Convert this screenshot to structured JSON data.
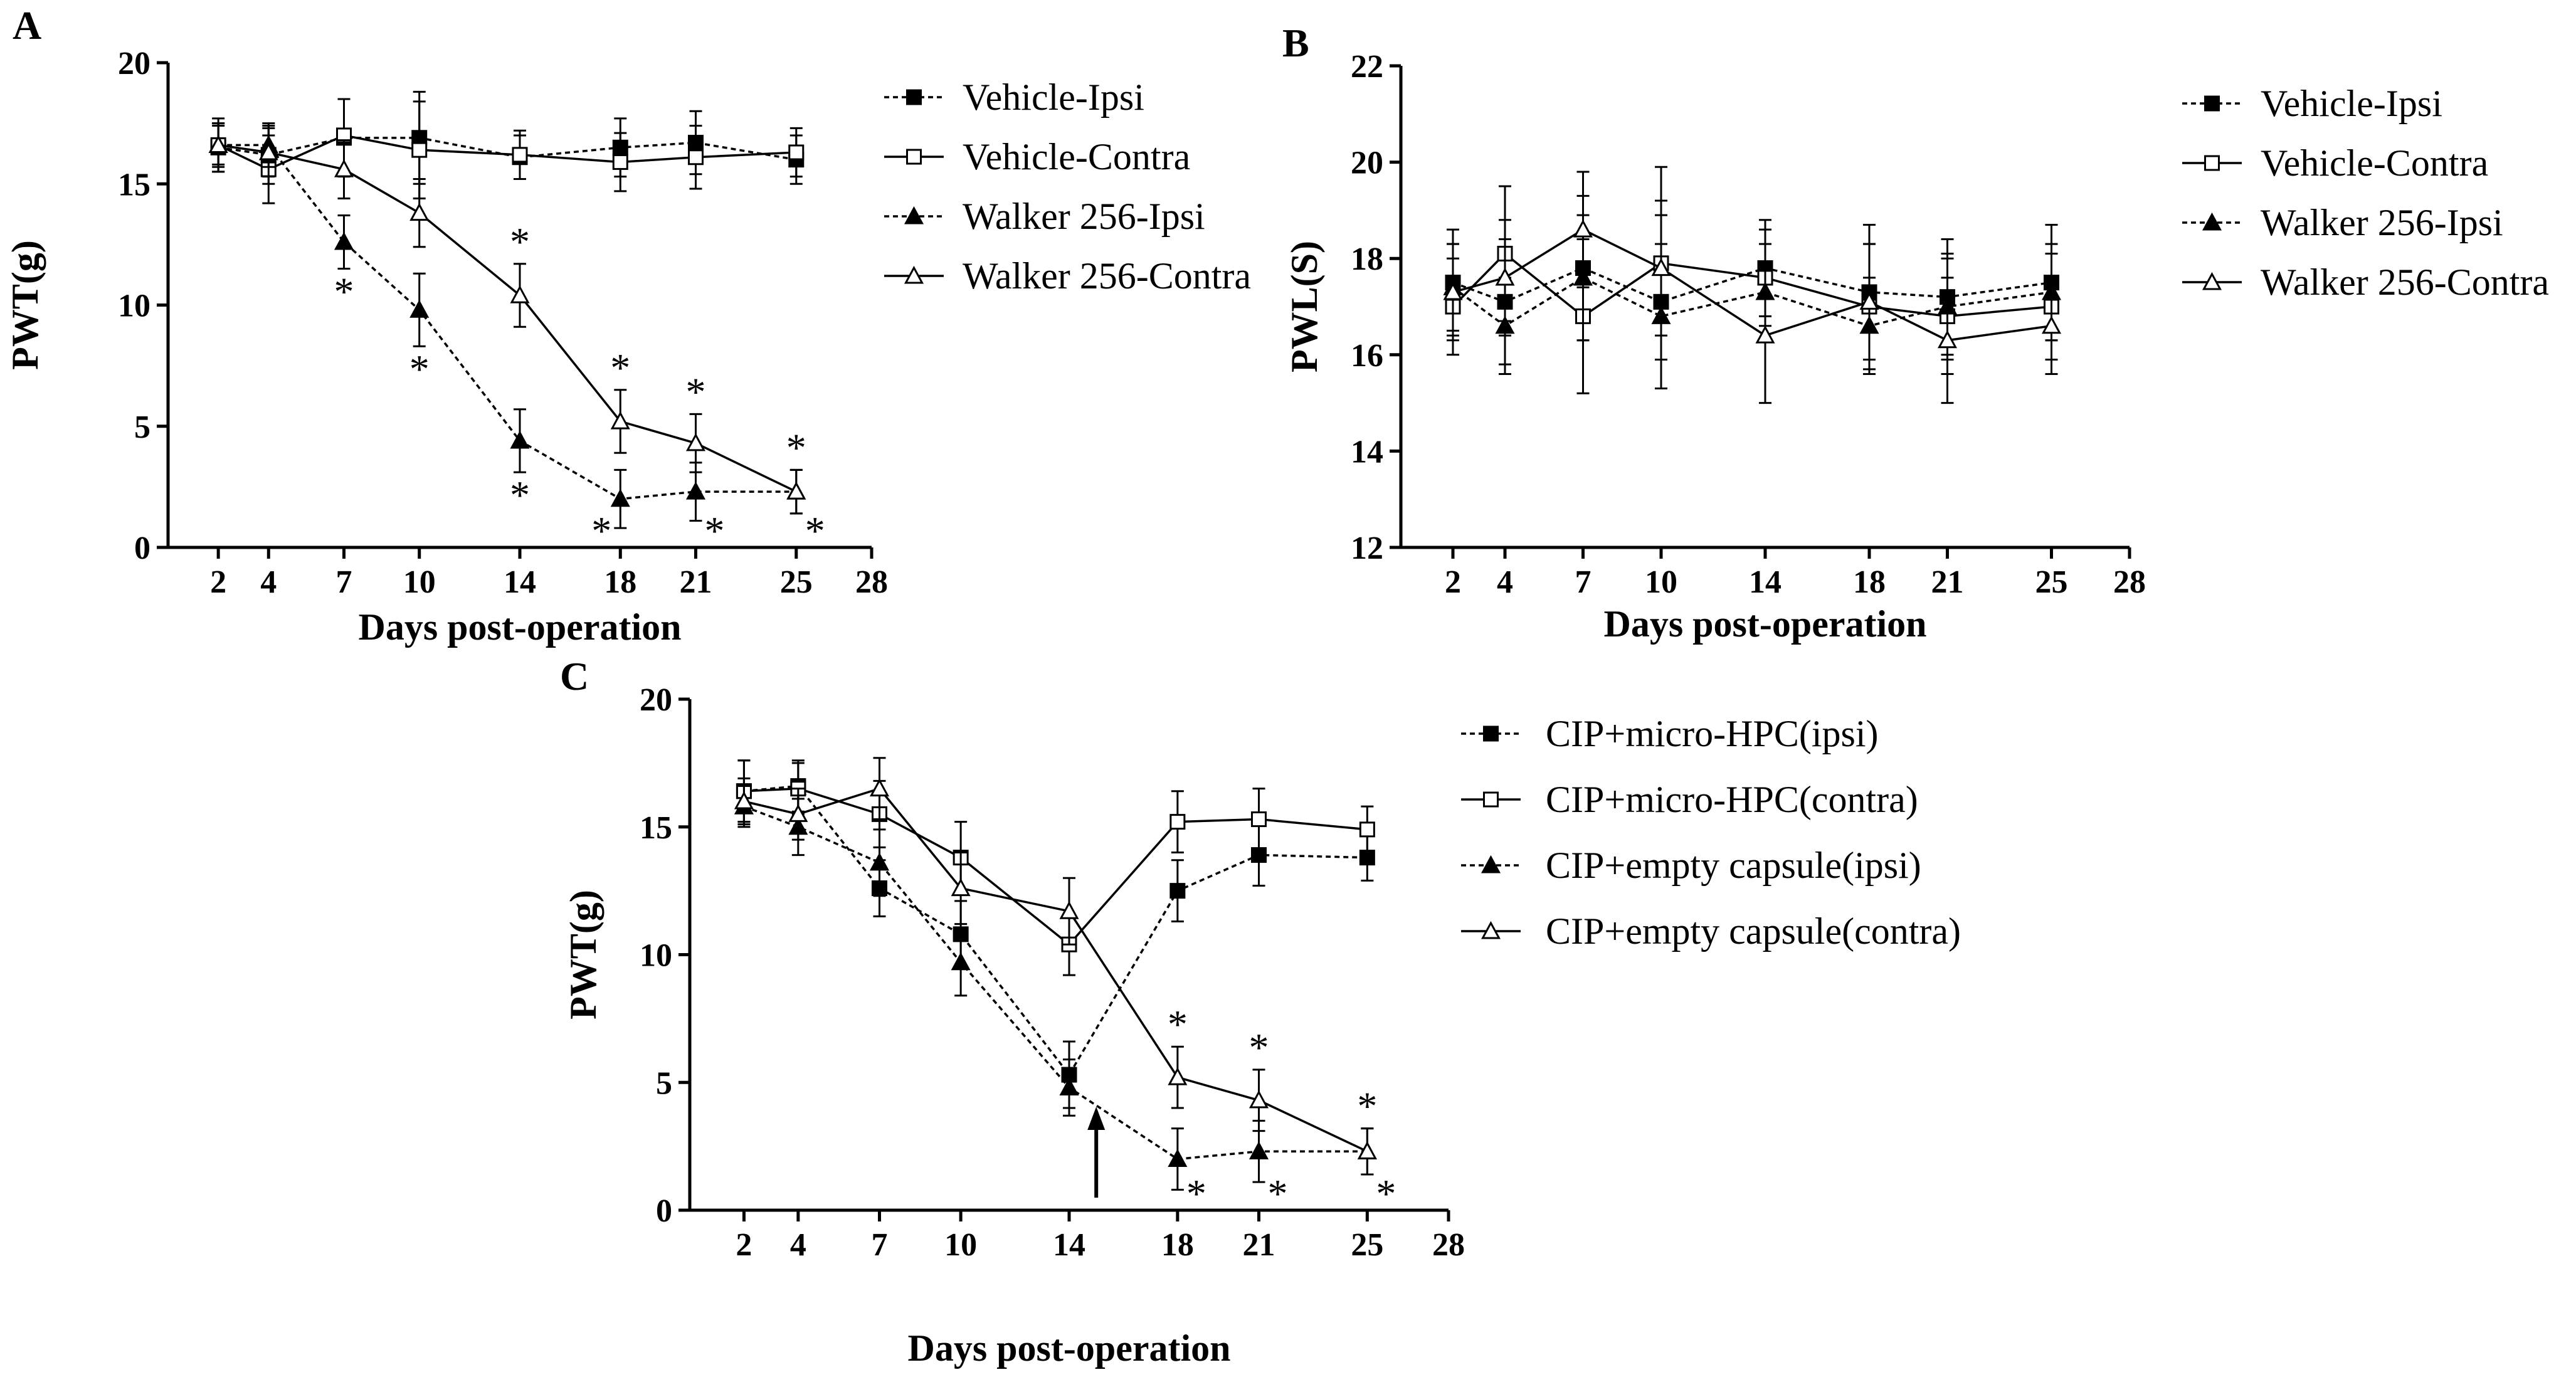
{
  "chart_data": [
    {
      "panel": "A",
      "type": "line",
      "ylabel": "PWT(g)",
      "xlabel": "Days post-operation",
      "ylim": [
        0,
        20
      ],
      "yticks": [
        "0",
        "5",
        "10",
        "15",
        "20"
      ],
      "xlim": [
        0,
        28
      ],
      "xticks": [
        "2",
        "4",
        "7",
        "10",
        "14",
        "18",
        "21",
        "25",
        "28"
      ],
      "x": [
        2,
        4,
        7,
        10,
        14,
        18,
        21,
        25
      ],
      "series": [
        {
          "name": "Vehicle-Ipsi",
          "line": "dotted",
          "marker": "square-filled",
          "values": [
            16.5,
            16.2,
            16.9,
            16.9,
            16.1,
            16.5,
            16.7,
            16.0
          ],
          "errors": [
            1.0,
            1.2,
            1.6,
            1.9,
            0.9,
            1.2,
            1.3,
            1.0
          ]
        },
        {
          "name": "Vehicle-Contra",
          "line": "solid",
          "marker": "square-open",
          "values": [
            16.6,
            15.6,
            17.0,
            16.4,
            16.2,
            15.9,
            16.1,
            16.3
          ],
          "errors": [
            1.1,
            1.4,
            1.5,
            2.0,
            1.0,
            1.2,
            1.3,
            1.0
          ]
        },
        {
          "name": "Walker 256-Ipsi",
          "line": "dotted",
          "marker": "triangle-filled",
          "values": [
            16.6,
            16.6,
            12.6,
            9.8,
            4.4,
            2.0,
            2.3,
            2.3
          ],
          "errors": [
            0.8,
            0.9,
            1.1,
            1.5,
            1.3,
            1.2,
            1.2,
            0.9
          ],
          "significant_below": [
            false,
            false,
            true,
            true,
            true,
            true,
            true,
            true
          ]
        },
        {
          "name": "Walker 256-Contra",
          "line": "solid",
          "marker": "triangle-open",
          "values": [
            16.6,
            16.3,
            15.6,
            13.8,
            10.4,
            5.2,
            4.3,
            2.3
          ],
          "errors": [
            0.9,
            1.0,
            1.2,
            1.4,
            1.3,
            1.3,
            1.2,
            0.9
          ],
          "significant_above": [
            false,
            false,
            false,
            false,
            true,
            true,
            true,
            true
          ]
        }
      ]
    },
    {
      "panel": "B",
      "type": "line",
      "ylabel": "PWL(S)",
      "xlabel": "Days post-operation",
      "ylim": [
        12,
        22
      ],
      "yticks": [
        "12",
        "14",
        "16",
        "18",
        "20",
        "22"
      ],
      "xlim": [
        0,
        28
      ],
      "xticks": [
        "2",
        "4",
        "7",
        "10",
        "14",
        "18",
        "21",
        "25",
        "28"
      ],
      "x": [
        2,
        4,
        7,
        10,
        14,
        18,
        21,
        25
      ],
      "series": [
        {
          "name": "Vehicle-Ipsi",
          "line": "dotted",
          "marker": "square-filled",
          "values": [
            17.5,
            17.1,
            17.8,
            17.1,
            17.8,
            17.3,
            17.2,
            17.5
          ],
          "errors": [
            1.1,
            1.3,
            1.5,
            1.8,
            1.0,
            1.4,
            1.2,
            1.2
          ]
        },
        {
          "name": "Vehicle-Contra",
          "line": "solid",
          "marker": "square-open",
          "values": [
            17.0,
            18.1,
            16.8,
            17.9,
            17.6,
            17.0,
            16.8,
            17.0
          ],
          "errors": [
            1.0,
            1.4,
            1.6,
            2.0,
            1.0,
            1.3,
            1.2,
            1.1
          ]
        },
        {
          "name": "Walker 256-Ipsi",
          "line": "dotted",
          "marker": "triangle-filled",
          "values": [
            17.4,
            16.6,
            17.6,
            16.8,
            17.3,
            16.6,
            17.0,
            17.3
          ],
          "errors": [
            0.9,
            1.0,
            1.3,
            1.5,
            1.0,
            1.0,
            1.1,
            1.0
          ]
        },
        {
          "name": "Walker 256-Contra",
          "line": "solid",
          "marker": "triangle-open",
          "values": [
            17.3,
            17.6,
            18.6,
            17.8,
            16.4,
            17.1,
            16.3,
            16.6
          ],
          "errors": [
            1.0,
            1.2,
            1.2,
            1.4,
            1.4,
            1.2,
            1.3,
            1.0
          ]
        }
      ]
    },
    {
      "panel": "C",
      "type": "line",
      "ylabel": "PWT(g)",
      "xlabel": "Days post-operation",
      "ylim": [
        0,
        20
      ],
      "yticks": [
        "0",
        "5",
        "10",
        "15",
        "20"
      ],
      "xlim": [
        0,
        28
      ],
      "xticks": [
        "2",
        "4",
        "7",
        "10",
        "14",
        "18",
        "21",
        "25",
        "28"
      ],
      "x": [
        2,
        4,
        7,
        10,
        14,
        18,
        21,
        25
      ],
      "arrow_at_day": 15,
      "series": [
        {
          "name": "CIP+micro-HPC(ipsi)",
          "line": "dotted",
          "marker": "square-filled",
          "values": [
            16.4,
            16.6,
            12.6,
            10.8,
            5.3,
            12.5,
            13.9,
            13.8
          ],
          "errors": [
            1.2,
            1.0,
            1.1,
            1.3,
            1.3,
            1.2,
            1.2,
            0.9
          ]
        },
        {
          "name": "CIP+micro-HPC(contra)",
          "line": "solid",
          "marker": "square-open",
          "values": [
            16.4,
            16.5,
            15.5,
            13.8,
            10.4,
            15.2,
            15.3,
            14.9
          ],
          "errors": [
            1.2,
            1.0,
            1.3,
            1.4,
            1.2,
            1.2,
            1.2,
            0.9
          ]
        },
        {
          "name": "CIP+empty capsule(ipsi)",
          "line": "dotted",
          "marker": "triangle-filled",
          "values": [
            15.8,
            15.0,
            13.6,
            9.7,
            4.8,
            2.0,
            2.3,
            2.3
          ],
          "errors": [
            0.8,
            1.1,
            1.3,
            1.3,
            1.1,
            1.2,
            1.2,
            0.9
          ],
          "significant_below": [
            false,
            false,
            false,
            false,
            false,
            true,
            true,
            true
          ]
        },
        {
          "name": "CIP+empty capsule(contra)",
          "line": "solid",
          "marker": "triangle-open",
          "values": [
            16.0,
            15.5,
            16.5,
            12.6,
            11.7,
            5.2,
            4.3,
            2.3
          ],
          "errors": [
            0.9,
            1.0,
            1.2,
            1.4,
            1.3,
            1.2,
            1.2,
            0.9
          ],
          "significant_above": [
            false,
            false,
            false,
            false,
            false,
            true,
            true,
            true
          ]
        }
      ]
    }
  ],
  "significance_symbol": "*"
}
